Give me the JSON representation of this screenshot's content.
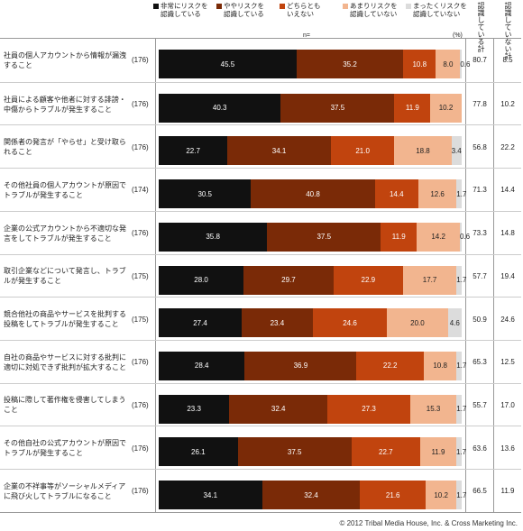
{
  "legend": [
    {
      "label": "非常にリスクを\n認識している",
      "color": "#111111",
      "text_color": "#ffffff"
    },
    {
      "label": "ややリスクを\n認識している",
      "color": "#7a2a07",
      "text_color": "#ffffff"
    },
    {
      "label": "どちらとも\nいえない",
      "color": "#c1440e",
      "text_color": "#ffffff"
    },
    {
      "label": "あまりリスクを\n認識していない",
      "color": "#f2b58f",
      "text_color": "#222222"
    },
    {
      "label": "まったくリスクを\n認識していない",
      "color": "#dcdcdc",
      "text_color": "#222222"
    }
  ],
  "header": {
    "n_label": "n=",
    "pct_label": "(%)",
    "col_aware": "認識している計",
    "col_unaware": "認識していない計"
  },
  "chart_data": {
    "type": "bar",
    "stacked": true,
    "orientation": "horizontal",
    "xlim": [
      0,
      100
    ],
    "series_names": [
      "非常にリスクを認識している",
      "ややリスクを認識している",
      "どちらともいえない",
      "あまりリスクを認識していない",
      "まったくリスクを認識していない"
    ],
    "rows": [
      {
        "label": "社員の個人アカウントから情報が漏洩すること",
        "n": "(176)",
        "values": [
          45.5,
          35.2,
          10.8,
          8.0,
          0.6
        ],
        "aware": "80.7",
        "unaware": "8.5"
      },
      {
        "label": "社員による顧客や他者に対する誹謗・中傷からトラブルが発生すること",
        "n": "(176)",
        "values": [
          40.3,
          37.5,
          11.9,
          10.2,
          0.0
        ],
        "aware": "77.8",
        "unaware": "10.2"
      },
      {
        "label": "関係者の発言が「やらせ」と受け取られること",
        "n": "(176)",
        "values": [
          22.7,
          34.1,
          21.0,
          18.8,
          3.4
        ],
        "aware": "56.8",
        "unaware": "22.2"
      },
      {
        "label": "その他社員の個人アカウントが原因でトラブルが発生すること",
        "n": "(174)",
        "values": [
          30.5,
          40.8,
          14.4,
          12.6,
          1.7
        ],
        "aware": "71.3",
        "unaware": "14.4"
      },
      {
        "label": "企業の公式アカウントから不適切な発言をしてトラブルが発生すること",
        "n": "(176)",
        "values": [
          35.8,
          37.5,
          11.9,
          14.2,
          0.6
        ],
        "aware": "73.3",
        "unaware": "14.8"
      },
      {
        "label": "取引企業などについて発言し、トラブルが発生すること",
        "n": "(175)",
        "values": [
          28.0,
          29.7,
          22.9,
          17.7,
          1.7
        ],
        "aware": "57.7",
        "unaware": "19.4"
      },
      {
        "label": "競合他社の商品やサービスを批判する投稿をしてトラブルが発生すること",
        "n": "(175)",
        "values": [
          27.4,
          23.4,
          24.6,
          20.0,
          4.6
        ],
        "aware": "50.9",
        "unaware": "24.6"
      },
      {
        "label": "自社の商品やサービスに対する批判に適切に対処できず批判が拡大すること",
        "n": "(176)",
        "values": [
          28.4,
          36.9,
          22.2,
          10.8,
          1.7
        ],
        "aware": "65.3",
        "unaware": "12.5"
      },
      {
        "label": "投稿に際して著作権を侵害してしまうこと",
        "n": "(176)",
        "values": [
          23.3,
          32.4,
          27.3,
          15.3,
          1.7
        ],
        "aware": "55.7",
        "unaware": "17.0"
      },
      {
        "label": "その他自社の公式アカウントが原因でトラブルが発生すること",
        "n": "(176)",
        "values": [
          26.1,
          37.5,
          22.7,
          11.9,
          1.7
        ],
        "aware": "63.6",
        "unaware": "13.6"
      },
      {
        "label": "企業の不祥事等がソーシャルメディアに飛び火してトラブルになること",
        "n": "(176)",
        "values": [
          34.1,
          32.4,
          21.6,
          10.2,
          1.7
        ],
        "aware": "66.5",
        "unaware": "11.9"
      }
    ]
  },
  "footer": {
    "copyright": "© 2012 Tribal Media House, Inc. & Cross Marketing Inc."
  }
}
